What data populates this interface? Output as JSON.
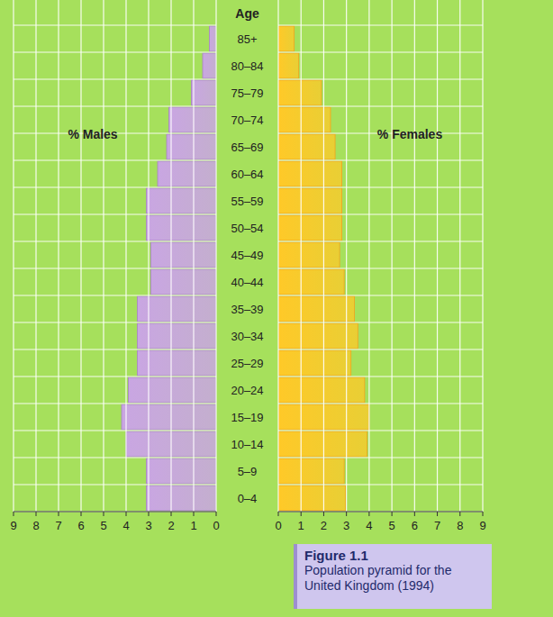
{
  "chart_data": {
    "type": "bar",
    "orientation": "horizontal",
    "title": "Figure 1.1",
    "subtitle": "Population pyramid for the United Kingdom (1994)",
    "y_label": "Age",
    "categories": [
      "0–4",
      "5–9",
      "10–14",
      "15–19",
      "20–24",
      "25–29",
      "30–34",
      "35–39",
      "40–44",
      "45–49",
      "50–54",
      "55–59",
      "60–64",
      "65–69",
      "70–74",
      "75–79",
      "80–84",
      "85+"
    ],
    "series": [
      {
        "name": "% Males",
        "color": "#c9a6e2",
        "values": [
          3.1,
          3.1,
          4.0,
          4.2,
          3.9,
          3.5,
          3.5,
          3.5,
          2.9,
          2.9,
          3.1,
          3.1,
          2.6,
          2.2,
          2.1,
          1.1,
          0.6,
          0.3
        ]
      },
      {
        "name": "% Females",
        "color": "#ffc928",
        "values": [
          2.95,
          2.9,
          3.9,
          4.0,
          3.8,
          3.2,
          3.5,
          3.35,
          2.9,
          2.7,
          2.8,
          2.8,
          2.8,
          2.5,
          2.3,
          1.9,
          0.9,
          0.7
        ]
      }
    ],
    "xlim": [
      0,
      9
    ],
    "xticks": [
      0,
      1,
      2,
      3,
      4,
      5,
      6,
      7,
      8,
      9
    ],
    "grid": true
  }
}
